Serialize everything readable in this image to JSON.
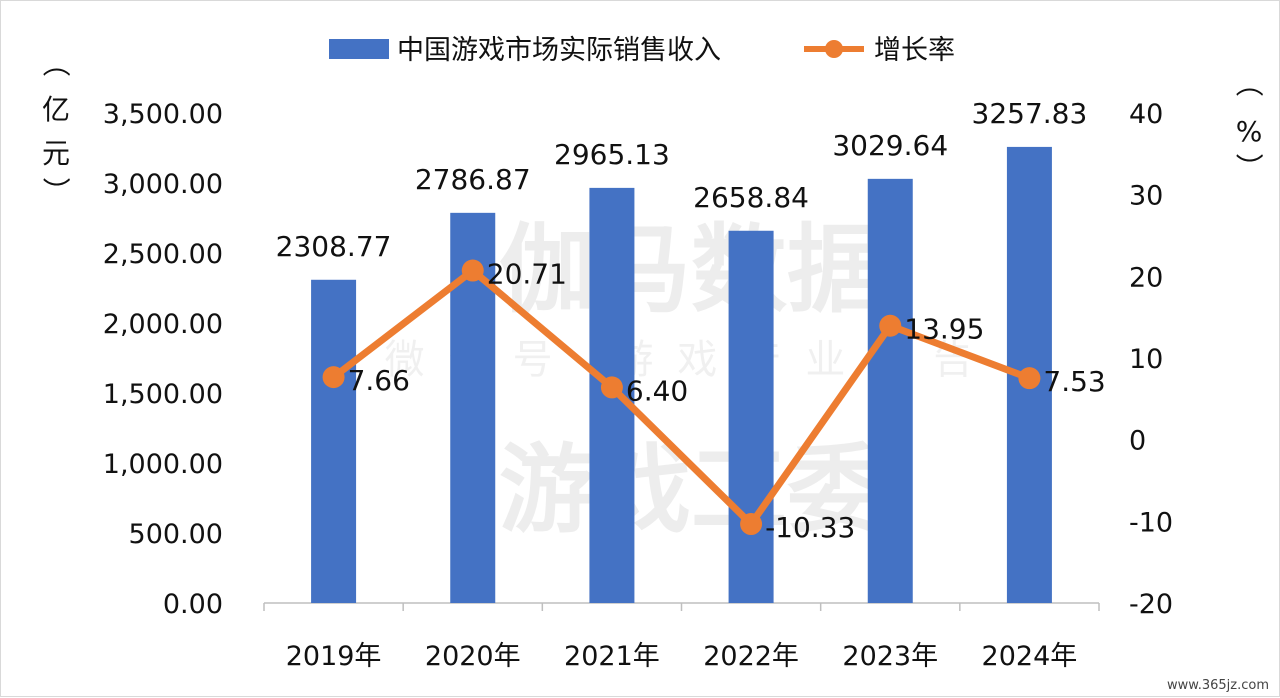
{
  "chart_data": {
    "type": "bar",
    "categories": [
      "2019年",
      "2020年",
      "2021年",
      "2022年",
      "2023年",
      "2024年"
    ],
    "series": [
      {
        "name": "中国游戏市场实际销售收入",
        "type": "bar",
        "axis": "left",
        "values": [
          2308.77,
          2786.87,
          2965.13,
          2658.84,
          3029.64,
          3257.83
        ],
        "labels": [
          "2308.77",
          "2786.87",
          "2965.13",
          "2658.84",
          "3029.64",
          "3257.83"
        ]
      },
      {
        "name": "增长率",
        "type": "line",
        "axis": "right",
        "values": [
          7.66,
          20.71,
          6.4,
          -10.33,
          13.95,
          7.53
        ],
        "labels": [
          "7.66",
          "20.71",
          "6.40",
          "-10.33",
          "13.95",
          "7.53"
        ]
      }
    ],
    "y_left": {
      "range": [
        0,
        3500
      ],
      "step": 500,
      "ticks": [
        "0.00",
        "500.00",
        "1,000.00",
        "1,500.00",
        "2,000.00",
        "2,500.00",
        "3,000.00",
        "3,500.00"
      ],
      "unit_chars": [
        "（",
        "亿",
        "元",
        "）"
      ]
    },
    "y_right": {
      "range": [
        -20,
        40
      ],
      "step": 10,
      "ticks": [
        "-20",
        "-10",
        "0",
        "10",
        "20",
        "30",
        "40"
      ],
      "unit_chars": [
        "（",
        "%",
        "）"
      ]
    },
    "legend_position": "top"
  },
  "colors": {
    "bar": "#4472C4",
    "line": "#ED7D31",
    "axis": "#bfbfbf"
  },
  "watermark": {
    "line1": "伽马数据",
    "line2": "微信号 游戏产业报告",
    "line3": "游戏工委"
  },
  "site_mark": "www.365jz.com"
}
